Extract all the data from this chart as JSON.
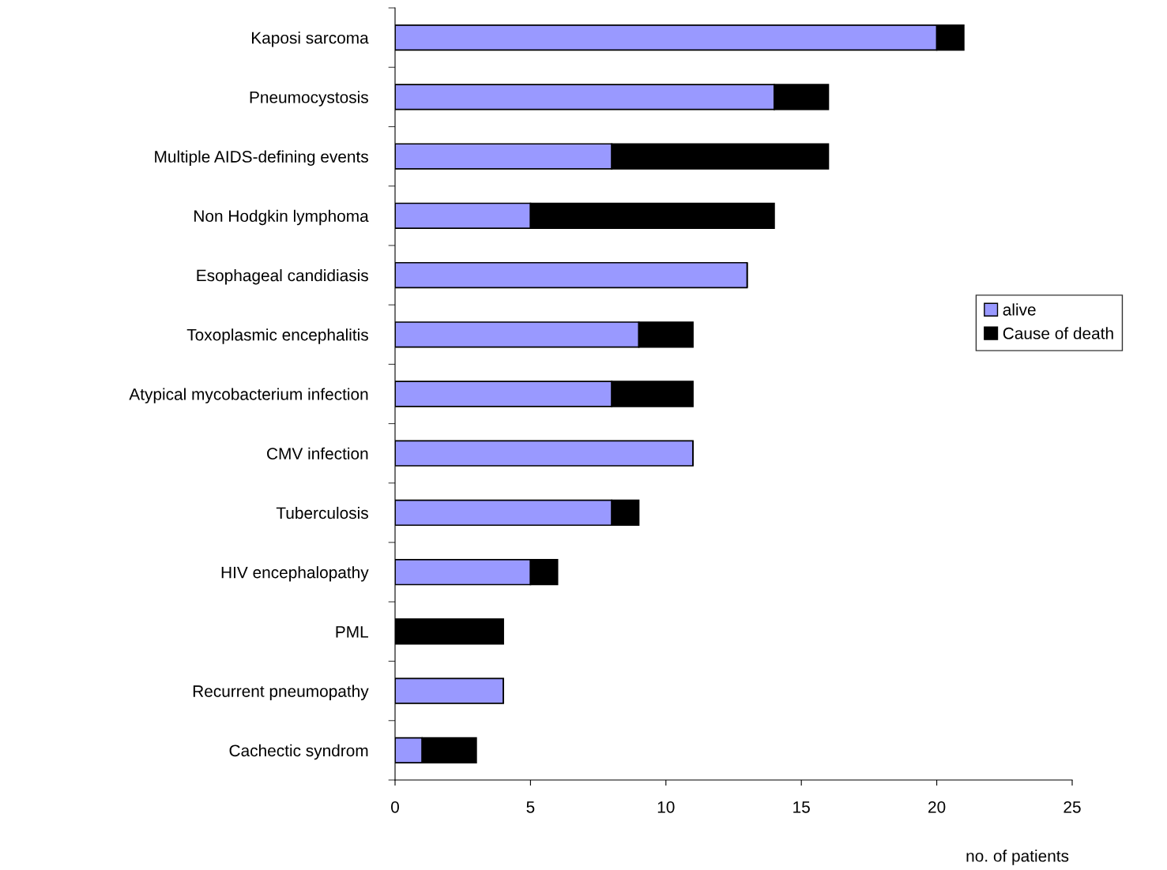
{
  "chart_data": {
    "type": "bar",
    "orientation": "horizontal",
    "stacked": true,
    "xlabel": "no. of patients",
    "categories": [
      "Kaposi sarcoma",
      "Pneumocystosis",
      "Multiple AIDS-defining events",
      "Non Hodgkin lymphoma",
      "Esophageal candidiasis",
      "Toxoplasmic encephalitis",
      "Atypical mycobacterium infection",
      "CMV infection",
      "Tuberculosis",
      "HIV encephalopathy",
      "PML",
      "Recurrent pneumopathy",
      "Cachectic syndrom"
    ],
    "series": [
      {
        "name": "alive",
        "color": "#9999ff",
        "values": [
          20,
          14,
          8,
          5,
          13,
          9,
          8,
          11,
          8,
          5,
          0,
          4,
          1
        ]
      },
      {
        "name": "Cause of death",
        "color": "#000000",
        "values": [
          1,
          2,
          8,
          9,
          0,
          2,
          3,
          0,
          1,
          1,
          4,
          0,
          2
        ]
      }
    ],
    "xlim": [
      0,
      25
    ],
    "xticks": [
      0,
      5,
      10,
      15,
      20,
      25
    ],
    "grid": false,
    "legend": "right"
  }
}
